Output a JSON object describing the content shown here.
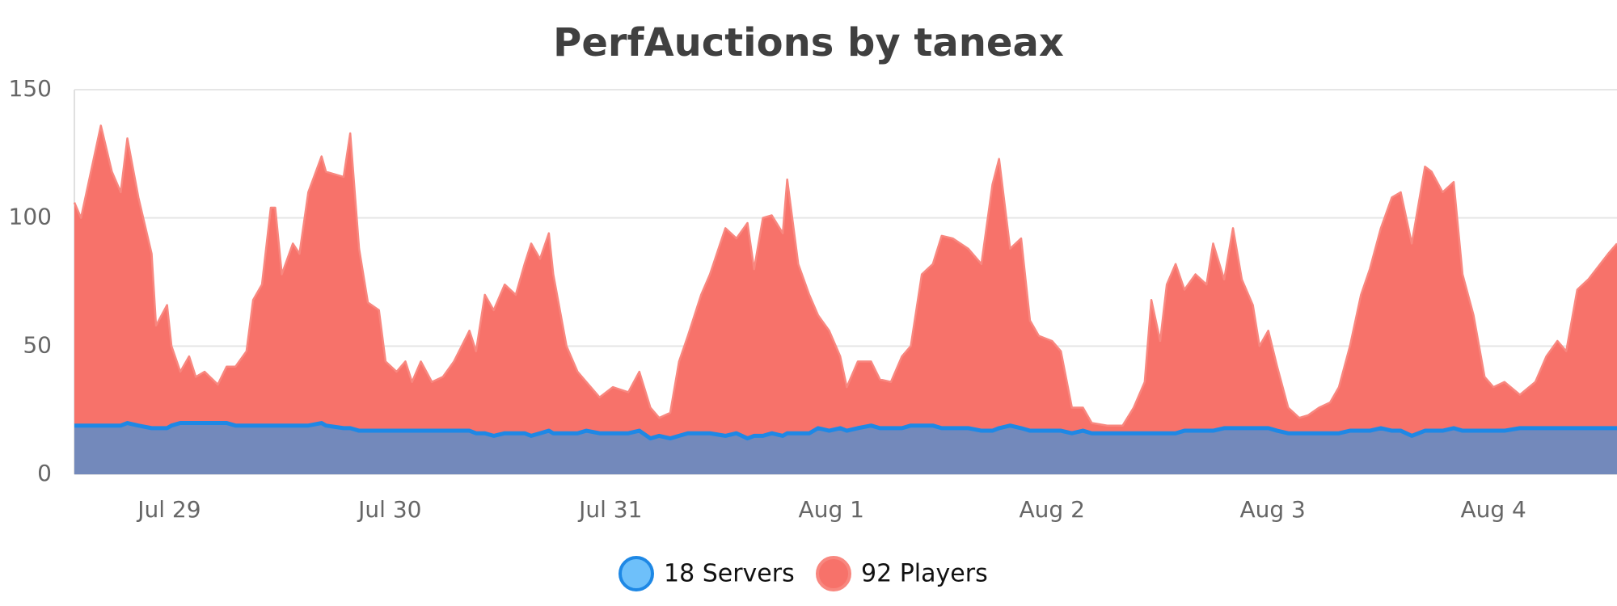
{
  "chart_data": {
    "type": "area",
    "title": "PerfAuctions by taneax",
    "x": [
      0.57,
      0.6,
      0.65,
      0.69,
      0.74,
      0.78,
      0.81,
      0.86,
      0.92,
      0.94,
      0.99,
      1.01,
      1.05,
      1.09,
      1.12,
      1.16,
      1.22,
      1.26,
      1.3,
      1.35,
      1.38,
      1.42,
      1.46,
      1.48,
      1.51,
      1.56,
      1.59,
      1.63,
      1.69,
      1.71,
      1.79,
      1.82,
      1.86,
      1.9,
      1.95,
      1.98,
      2.03,
      2.07,
      2.1,
      2.14,
      2.19,
      2.24,
      2.29,
      2.36,
      2.39,
      2.43,
      2.47,
      2.52,
      2.57,
      2.61,
      2.64,
      2.68,
      2.72,
      2.74,
      2.8,
      2.85,
      2.89,
      2.95,
      3.01,
      3.08,
      3.13,
      3.18,
      3.22,
      3.27,
      3.31,
      3.35,
      3.41,
      3.45,
      3.52,
      3.57,
      3.62,
      3.65,
      3.69,
      3.73,
      3.78,
      3.8,
      3.85,
      3.9,
      3.94,
      3.99,
      4.04,
      4.07,
      4.12,
      4.18,
      4.22,
      4.27,
      4.32,
      4.36,
      4.41,
      4.46,
      4.5,
      4.55,
      4.62,
      4.68,
      4.73,
      4.76,
      4.81,
      4.86,
      4.9,
      4.94,
      5.0,
      5.04,
      5.09,
      5.14,
      5.18,
      5.25,
      5.32,
      5.37,
      5.42,
      5.45,
      5.49,
      5.52,
      5.56,
      5.6,
      5.65,
      5.7,
      5.73,
      5.78,
      5.82,
      5.86,
      5.91,
      5.94,
      5.98,
      6.02,
      6.07,
      6.12,
      6.16,
      6.21,
      6.26,
      6.3,
      6.35,
      6.4,
      6.44,
      6.49,
      6.54,
      6.58,
      6.63,
      6.69,
      6.72,
      6.77,
      6.82,
      6.86,
      6.91,
      6.96,
      7.0,
      7.05,
      7.12,
      7.19,
      7.24,
      7.29,
      7.33,
      7.38,
      7.43,
      7.52,
      7.56
    ],
    "series": [
      {
        "name": "18 Servers",
        "color": "#1e88e5",
        "fill": "#7389bb",
        "marker_fill": "#6ec0fa",
        "values": [
          19,
          19,
          19,
          19,
          19,
          19,
          20,
          19,
          18,
          18,
          18,
          19,
          20,
          20,
          20,
          20,
          20,
          20,
          19,
          19,
          19,
          19,
          19,
          19,
          19,
          19,
          19,
          19,
          20,
          19,
          18,
          18,
          17,
          17,
          17,
          17,
          17,
          17,
          17,
          17,
          17,
          17,
          17,
          17,
          16,
          16,
          15,
          16,
          16,
          16,
          15,
          16,
          17,
          16,
          16,
          16,
          17,
          16,
          16,
          16,
          17,
          14,
          15,
          14,
          15,
          16,
          16,
          16,
          15,
          16,
          14,
          15,
          15,
          16,
          15,
          16,
          16,
          16,
          18,
          17,
          18,
          17,
          18,
          19,
          18,
          18,
          18,
          19,
          19,
          19,
          18,
          18,
          18,
          17,
          17,
          18,
          19,
          18,
          17,
          17,
          17,
          17,
          16,
          17,
          16,
          16,
          16,
          16,
          16,
          16,
          16,
          16,
          16,
          17,
          17,
          17,
          17,
          18,
          18,
          18,
          18,
          18,
          18,
          17,
          16,
          16,
          16,
          16,
          16,
          16,
          17,
          17,
          17,
          18,
          17,
          17,
          15,
          17,
          17,
          17,
          18,
          17,
          17,
          17,
          17,
          17,
          18,
          18,
          18,
          18,
          18,
          18,
          18,
          18,
          18
        ]
      },
      {
        "name": "92 Players",
        "color": "#f8877f",
        "fill": "#f7726a",
        "marker_fill": "#f7726a",
        "values": [
          106,
          100,
          120,
          136,
          118,
          110,
          131,
          108,
          86,
          58,
          66,
          50,
          40,
          46,
          38,
          40,
          35,
          42,
          42,
          48,
          68,
          74,
          104,
          104,
          78,
          90,
          86,
          110,
          124,
          118,
          116,
          133,
          88,
          67,
          64,
          44,
          40,
          44,
          36,
          44,
          36,
          38,
          44,
          56,
          48,
          70,
          64,
          74,
          70,
          82,
          90,
          84,
          94,
          78,
          50,
          40,
          36,
          30,
          34,
          32,
          40,
          26,
          22,
          24,
          44,
          54,
          70,
          78,
          96,
          92,
          98,
          80,
          100,
          101,
          94,
          115,
          82,
          70,
          62,
          56,
          46,
          34,
          44,
          44,
          37,
          36,
          46,
          50,
          78,
          82,
          93,
          92,
          88,
          82,
          113,
          123,
          88,
          92,
          60,
          54,
          52,
          48,
          26,
          26,
          20,
          19,
          19,
          26,
          36,
          68,
          52,
          74,
          82,
          72,
          78,
          74,
          90,
          76,
          96,
          76,
          66,
          50,
          56,
          42,
          26,
          22,
          23,
          26,
          28,
          34,
          50,
          70,
          80,
          96,
          108,
          110,
          90,
          120,
          118,
          110,
          114,
          78,
          62,
          38,
          34,
          36,
          31,
          36,
          46,
          52,
          48,
          72,
          76,
          86,
          90
        ]
      }
    ],
    "xlim": [
      0.57,
      7.56
    ],
    "xticks": [
      {
        "value": 1,
        "label": "Jul 29"
      },
      {
        "value": 2,
        "label": "Jul 30"
      },
      {
        "value": 3,
        "label": "Jul 31"
      },
      {
        "value": 4,
        "label": "Aug 1"
      },
      {
        "value": 5,
        "label": "Aug 2"
      },
      {
        "value": 6,
        "label": "Aug 3"
      },
      {
        "value": 7,
        "label": "Aug 4"
      }
    ],
    "ylim": [
      0,
      150
    ],
    "yticks": [
      0,
      50,
      100,
      150
    ],
    "grid": true,
    "legend": "bottom"
  }
}
